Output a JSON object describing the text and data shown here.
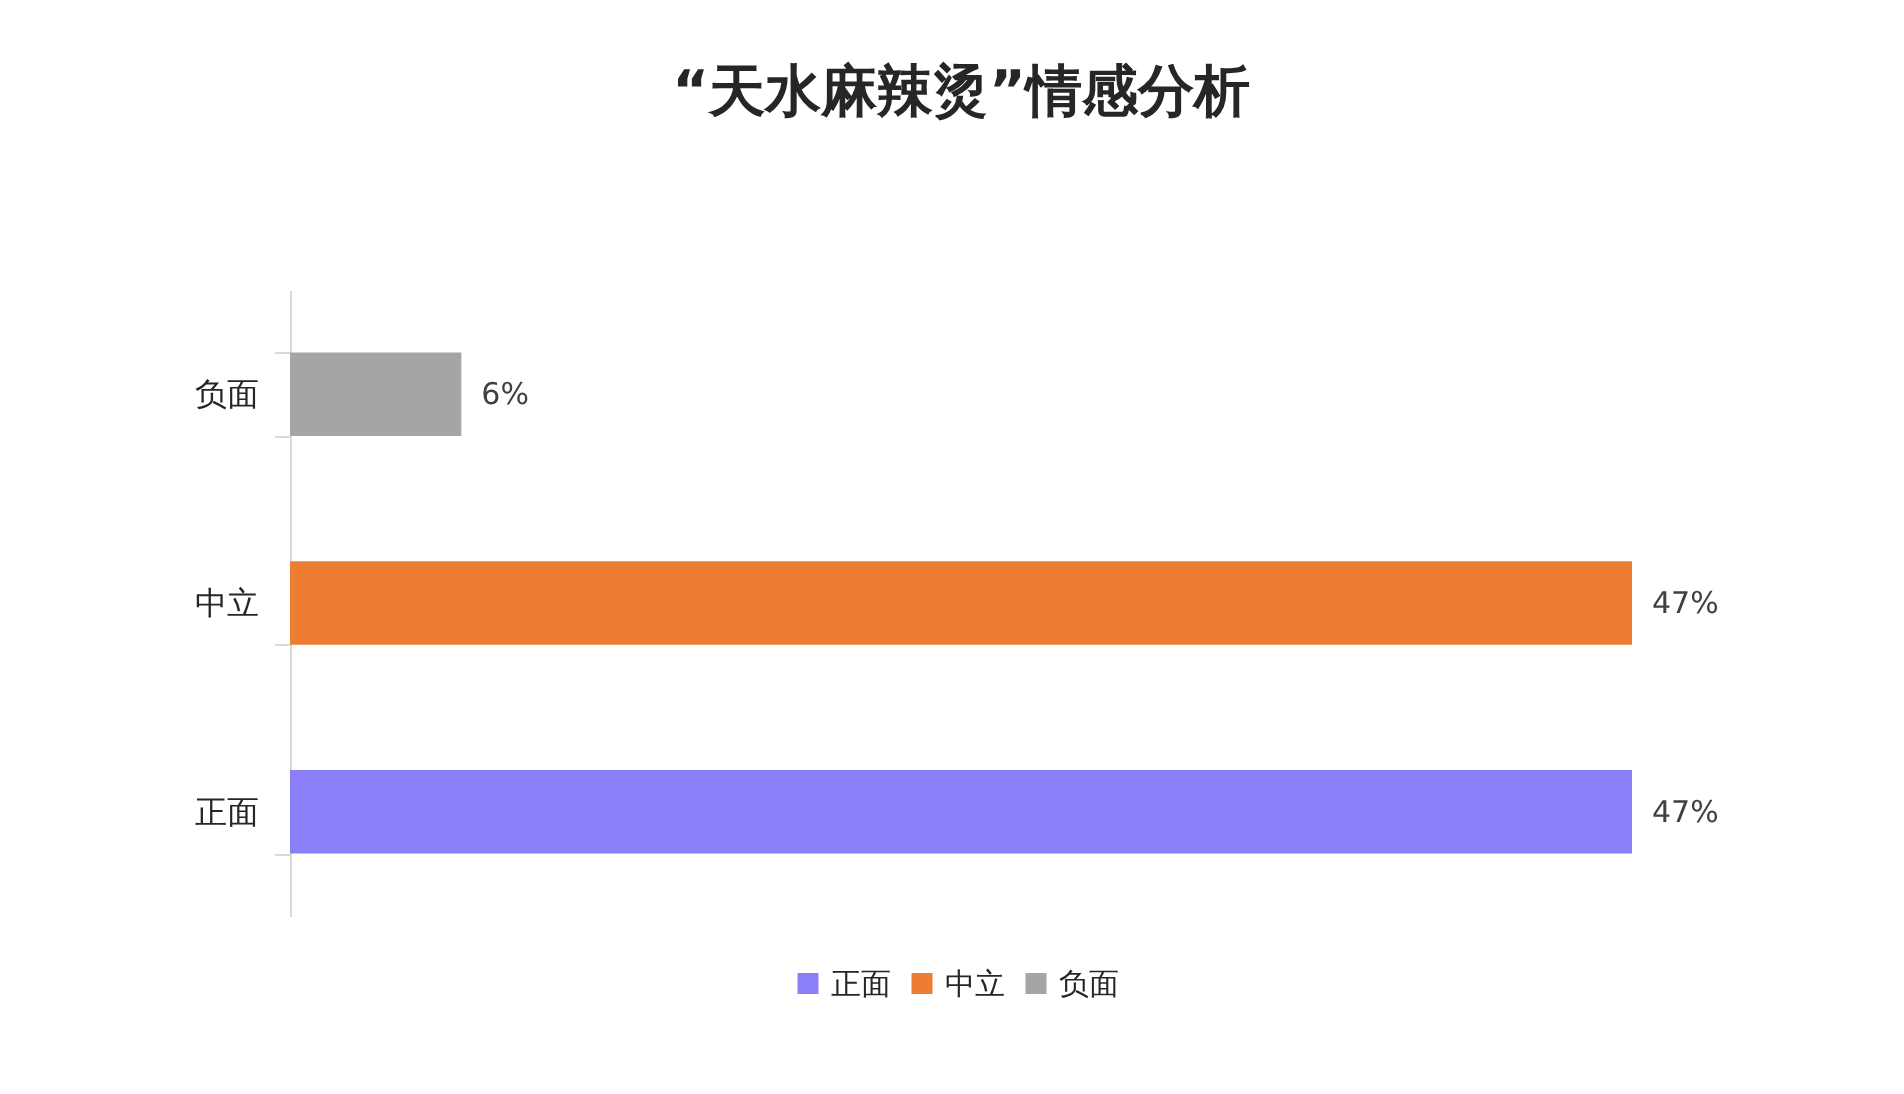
{
  "chart_data": {
    "type": "bar",
    "orientation": "horizontal",
    "title": "“天水麻辣烫”情感分析",
    "categories": [
      "负面",
      "中立",
      "正面"
    ],
    "series": [
      {
        "name": "正面",
        "color": "#8b7ff8",
        "values": [
          null,
          null,
          47
        ],
        "value_labels": [
          null,
          null,
          "47%"
        ]
      },
      {
        "name": "中立",
        "color": "#ed7d31",
        "values": [
          null,
          47,
          null
        ],
        "value_labels": [
          null,
          "47%",
          null
        ]
      },
      {
        "name": "负面",
        "color": "#a5a5a5",
        "values": [
          6,
          null,
          null
        ],
        "value_labels": [
          "6%",
          null,
          null
        ]
      }
    ],
    "legend": "bottom"
  }
}
